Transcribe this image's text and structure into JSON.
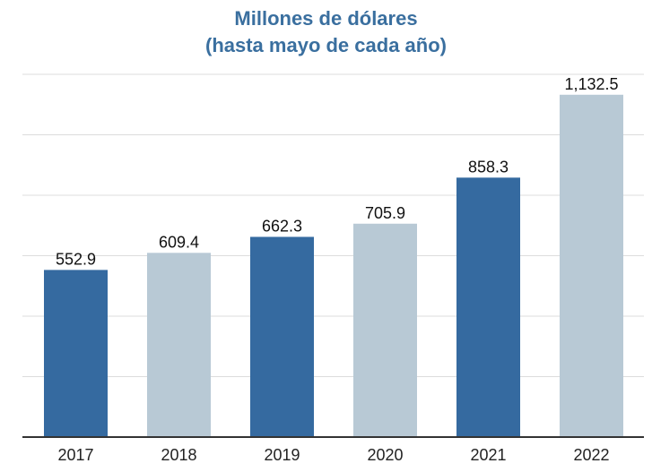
{
  "chart_data": {
    "type": "bar",
    "title_line1": "Millones de dólares",
    "title_line2": "(hasta mayo de cada año)",
    "categories": [
      "2017",
      "2018",
      "2019",
      "2020",
      "2021",
      "2022"
    ],
    "values": [
      552.9,
      609.4,
      662.3,
      705.9,
      858.3,
      1132.5
    ],
    "value_labels": [
      "552.9",
      "609.4",
      "662.3",
      "705.9",
      "858.3",
      "1,132.5"
    ],
    "bar_colors": [
      "#356aa0",
      "#b8c9d5",
      "#356aa0",
      "#b8c9d5",
      "#356aa0",
      "#b8c9d5"
    ],
    "title_color": "#3a6f9f",
    "ylim": [
      0,
      1200
    ],
    "grid": true,
    "xlabel": "",
    "ylabel": ""
  }
}
